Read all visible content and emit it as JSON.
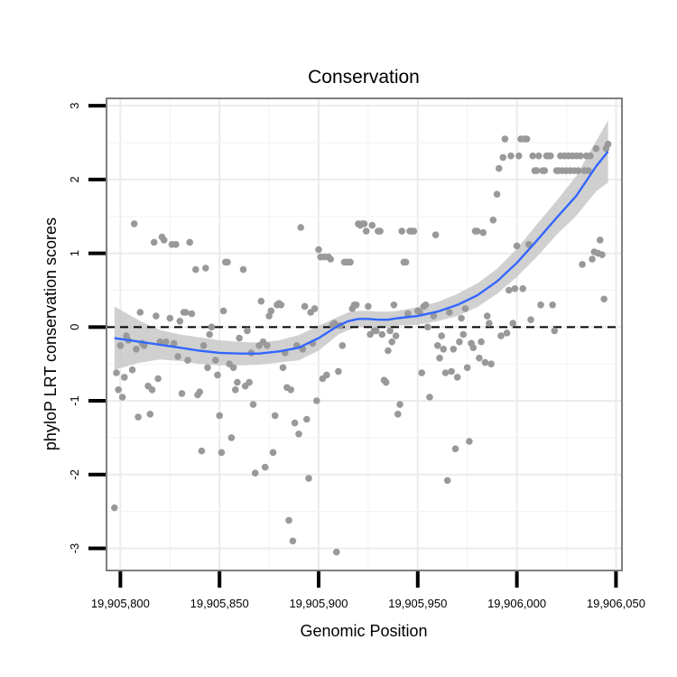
{
  "chart_data": {
    "type": "scatter",
    "title": "Conservation",
    "xlabel": "Genomic Position",
    "ylabel": "phyloP LRT conservation scores",
    "xlim": [
      19905793,
      19906053
    ],
    "ylim": [
      -3.3,
      3.1
    ],
    "x_ticks": [
      19905800,
      19905850,
      19905900,
      19905950,
      19906000,
      19906050
    ],
    "x_tick_labels": [
      "19,905,800",
      "19,905,850",
      "19,905,900",
      "19,905,950",
      "19,906,000",
      "19,906,050"
    ],
    "y_ticks": [
      -3,
      -2,
      -1,
      0,
      1,
      2,
      3
    ],
    "y_tick_labels": [
      "-3",
      "-2",
      "-1",
      "0",
      "1",
      "2",
      "3"
    ],
    "reference_line": 0,
    "colors": {
      "points": "#999999",
      "smooth": "#3366ff",
      "band": "#c8c8c8",
      "grid": "#ebebeb",
      "panel_border": "#7f7f7f"
    },
    "points": [
      [
        19905797,
        -2.45
      ],
      [
        19905798,
        -0.62
      ],
      [
        19905799,
        -0.85
      ],
      [
        19905800,
        -0.25
      ],
      [
        19905801,
        -0.95
      ],
      [
        19905802,
        -0.68
      ],
      [
        19905803,
        -0.12
      ],
      [
        19905804,
        -0.18
      ],
      [
        19905806,
        -0.58
      ],
      [
        19905807,
        1.4
      ],
      [
        19905808,
        -0.3
      ],
      [
        19905809,
        -1.22
      ],
      [
        19905810,
        0.2
      ],
      [
        19905811,
        -0.22
      ],
      [
        19905812,
        -0.25
      ],
      [
        19905814,
        -0.8
      ],
      [
        19905815,
        -1.18
      ],
      [
        19905816,
        -0.85
      ],
      [
        19905817,
        1.15
      ],
      [
        19905818,
        0.15
      ],
      [
        19905819,
        -0.7
      ],
      [
        19905820,
        -0.2
      ],
      [
        19905821,
        1.22
      ],
      [
        19905822,
        1.18
      ],
      [
        19905823,
        -0.2
      ],
      [
        19905825,
        0.12
      ],
      [
        19905826,
        1.12
      ],
      [
        19905827,
        -0.22
      ],
      [
        19905828,
        1.12
      ],
      [
        19905829,
        -0.4
      ],
      [
        19905830,
        0.08
      ],
      [
        19905831,
        -0.9
      ],
      [
        19905832,
        0.2
      ],
      [
        19905833,
        0.2
      ],
      [
        19905834,
        -0.45
      ],
      [
        19905835,
        1.15
      ],
      [
        19905836,
        0.18
      ],
      [
        19905838,
        0.78
      ],
      [
        19905839,
        -0.92
      ],
      [
        19905840,
        -0.88
      ],
      [
        19905841,
        -1.68
      ],
      [
        19905842,
        -0.25
      ],
      [
        19905843,
        0.8
      ],
      [
        19905844,
        -0.55
      ],
      [
        19905845,
        -0.1
      ],
      [
        19905846,
        0.0
      ],
      [
        19905848,
        -0.45
      ],
      [
        19905849,
        -0.65
      ],
      [
        19905850,
        -1.2
      ],
      [
        19905851,
        -1.7
      ],
      [
        19905852,
        0.22
      ],
      [
        19905853,
        0.88
      ],
      [
        19905854,
        0.88
      ],
      [
        19905855,
        -0.5
      ],
      [
        19905856,
        -1.5
      ],
      [
        19905857,
        -0.55
      ],
      [
        19905858,
        -0.85
      ],
      [
        19905859,
        -0.75
      ],
      [
        19905860,
        -0.15
      ],
      [
        19905862,
        0.78
      ],
      [
        19905863,
        -0.8
      ],
      [
        19905864,
        -0.05
      ],
      [
        19905865,
        -0.75
      ],
      [
        19905866,
        -0.35
      ],
      [
        19905867,
        -1.05
      ],
      [
        19905868,
        -1.98
      ],
      [
        19905870,
        -0.25
      ],
      [
        19905871,
        0.35
      ],
      [
        19905872,
        -0.2
      ],
      [
        19905873,
        -1.9
      ],
      [
        19905874,
        -0.25
      ],
      [
        19905875,
        0.15
      ],
      [
        19905876,
        0.22
      ],
      [
        19905877,
        -1.7
      ],
      [
        19905878,
        -1.2
      ],
      [
        19905879,
        0.3
      ],
      [
        19905880,
        0.32
      ],
      [
        19905881,
        0.3
      ],
      [
        19905882,
        -0.55
      ],
      [
        19905883,
        -0.35
      ],
      [
        19905884,
        -0.82
      ],
      [
        19905885,
        -2.62
      ],
      [
        19905886,
        -0.85
      ],
      [
        19905887,
        -2.9
      ],
      [
        19905888,
        -1.3
      ],
      [
        19905889,
        -0.25
      ],
      [
        19905890,
        -1.45
      ],
      [
        19905891,
        1.35
      ],
      [
        19905892,
        -0.3
      ],
      [
        19905893,
        0.28
      ],
      [
        19905894,
        -1.25
      ],
      [
        19905895,
        -2.05
      ],
      [
        19905896,
        0.2
      ],
      [
        19905897,
        -0.22
      ],
      [
        19905898,
        0.25
      ],
      [
        19905899,
        -1.0
      ],
      [
        19905900,
        1.05
      ],
      [
        19905901,
        0.95
      ],
      [
        19905902,
        -0.7
      ],
      [
        19905903,
        0.95
      ],
      [
        19905904,
        -0.65
      ],
      [
        19905905,
        0.95
      ],
      [
        19905906,
        0.92
      ],
      [
        19905907,
        0.03
      ],
      [
        19905908,
        0.05
      ],
      [
        19905909,
        -3.05
      ],
      [
        19905910,
        -0.6
      ],
      [
        19905911,
        0.02
      ],
      [
        19905912,
        -0.25
      ],
      [
        19905913,
        0.88
      ],
      [
        19905914,
        0.88
      ],
      [
        19905915,
        0.88
      ],
      [
        19905916,
        0.88
      ],
      [
        19905917,
        0.25
      ],
      [
        19905918,
        0.3
      ],
      [
        19905919,
        0.3
      ],
      [
        19905920,
        1.4
      ],
      [
        19905921,
        1.38
      ],
      [
        19905922,
        1.4
      ],
      [
        19905923,
        1.4
      ],
      [
        19905924,
        1.3
      ],
      [
        19905925,
        0.28
      ],
      [
        19905926,
        -0.1
      ],
      [
        19905927,
        1.38
      ],
      [
        19905928,
        -0.05
      ],
      [
        19905929,
        -0.05
      ],
      [
        19905930,
        1.3
      ],
      [
        19905931,
        1.3
      ],
      [
        19905932,
        -0.1
      ],
      [
        19905933,
        -0.72
      ],
      [
        19905934,
        -0.75
      ],
      [
        19905935,
        -0.32
      ],
      [
        19905936,
        -0.05
      ],
      [
        19905937,
        -0.2
      ],
      [
        19905938,
        0.3
      ],
      [
        19905939,
        -0.12
      ],
      [
        19905940,
        -1.18
      ],
      [
        19905941,
        -1.05
      ],
      [
        19905942,
        1.3
      ],
      [
        19905943,
        0.88
      ],
      [
        19905944,
        0.88
      ],
      [
        19905945,
        0.18
      ],
      [
        19905946,
        1.3
      ],
      [
        19905947,
        1.3
      ],
      [
        19905948,
        1.3
      ],
      [
        19905950,
        0.22
      ],
      [
        19905951,
        0.2
      ],
      [
        19905952,
        -0.62
      ],
      [
        19905953,
        0.28
      ],
      [
        19905954,
        0.3
      ],
      [
        19905955,
        0.0
      ],
      [
        19905956,
        -0.95
      ],
      [
        19905958,
        0.15
      ],
      [
        19905959,
        1.25
      ],
      [
        19905960,
        -0.25
      ],
      [
        19905961,
        -0.42
      ],
      [
        19905962,
        -0.12
      ],
      [
        19905963,
        -0.3
      ],
      [
        19905964,
        -0.62
      ],
      [
        19905965,
        -2.08
      ],
      [
        19905966,
        0.2
      ],
      [
        19905967,
        -0.6
      ],
      [
        19905968,
        -0.3
      ],
      [
        19905969,
        -1.65
      ],
      [
        19905970,
        -0.68
      ],
      [
        19905971,
        -0.2
      ],
      [
        19905972,
        0.12
      ],
      [
        19905973,
        -0.1
      ],
      [
        19905974,
        0.25
      ],
      [
        19905975,
        -0.55
      ],
      [
        19905976,
        -1.55
      ],
      [
        19905977,
        -0.22
      ],
      [
        19905978,
        -0.28
      ],
      [
        19905979,
        1.3
      ],
      [
        19905980,
        1.3
      ],
      [
        19905981,
        -0.42
      ],
      [
        19905982,
        -0.2
      ],
      [
        19905983,
        1.28
      ],
      [
        19905984,
        -0.48
      ],
      [
        19905985,
        0.15
      ],
      [
        19905986,
        0.05
      ],
      [
        19905987,
        -0.5
      ],
      [
        19905988,
        1.45
      ],
      [
        19905990,
        1.8
      ],
      [
        19905991,
        2.15
      ],
      [
        19905992,
        -0.12
      ],
      [
        19905993,
        2.3
      ],
      [
        19905994,
        2.55
      ],
      [
        19905995,
        -0.08
      ],
      [
        19905996,
        0.5
      ],
      [
        19905997,
        2.32
      ],
      [
        19905998,
        0.05
      ],
      [
        19905999,
        0.52
      ],
      [
        19906000,
        1.1
      ],
      [
        19906001,
        2.32
      ],
      [
        19906002,
        2.55
      ],
      [
        19906003,
        0.52
      ],
      [
        19906004,
        2.55
      ],
      [
        19906005,
        2.55
      ],
      [
        19906006,
        1.12
      ],
      [
        19906007,
        0.1
      ],
      [
        19906008,
        2.32
      ],
      [
        19906009,
        2.12
      ],
      [
        19906010,
        2.12
      ],
      [
        19906011,
        2.32
      ],
      [
        19906012,
        0.3
      ],
      [
        19906013,
        2.12
      ],
      [
        19906014,
        2.12
      ],
      [
        19906015,
        2.32
      ],
      [
        19906016,
        2.32
      ],
      [
        19906017,
        2.32
      ],
      [
        19906018,
        0.3
      ],
      [
        19906019,
        -0.05
      ],
      [
        19906020,
        2.12
      ],
      [
        19906021,
        2.12
      ],
      [
        19906022,
        2.32
      ],
      [
        19906023,
        2.12
      ],
      [
        19906024,
        2.32
      ],
      [
        19906025,
        2.12
      ],
      [
        19906026,
        2.32
      ],
      [
        19906027,
        2.12
      ],
      [
        19906028,
        2.32
      ],
      [
        19906029,
        2.12
      ],
      [
        19906030,
        2.32
      ],
      [
        19906031,
        2.12
      ],
      [
        19906032,
        2.32
      ],
      [
        19906033,
        0.85
      ],
      [
        19906034,
        2.12
      ],
      [
        19906035,
        2.32
      ],
      [
        19906036,
        2.12
      ],
      [
        19906037,
        2.32
      ],
      [
        19906038,
        0.92
      ],
      [
        19906039,
        1.02
      ],
      [
        19906040,
        2.42
      ],
      [
        19906041,
        1.0
      ],
      [
        19906042,
        1.18
      ],
      [
        19906043,
        0.98
      ],
      [
        19906044,
        0.38
      ],
      [
        19906045,
        2.42
      ],
      [
        19906046,
        2.48
      ]
    ],
    "smooth": {
      "x": [
        19905797,
        19905810,
        19905820,
        19905830,
        19905840,
        19905850,
        19905860,
        19905870,
        19905880,
        19905890,
        19905900,
        19905910,
        19905915,
        19905920,
        19905925,
        19905930,
        19905935,
        19905940,
        19905950,
        19905960,
        19905970,
        19905980,
        19905990,
        19906000,
        19906010,
        19906020,
        19906030,
        19906040,
        19906046
      ],
      "y": [
        -0.15,
        -0.2,
        -0.24,
        -0.28,
        -0.32,
        -0.35,
        -0.36,
        -0.36,
        -0.33,
        -0.28,
        -0.15,
        0.02,
        0.08,
        0.11,
        0.11,
        0.1,
        0.1,
        0.12,
        0.15,
        0.21,
        0.3,
        0.43,
        0.62,
        0.87,
        1.17,
        1.48,
        1.78,
        2.18,
        2.38
      ],
      "upper": [
        0.28,
        0.08,
        -0.04,
        -0.1,
        -0.14,
        -0.18,
        -0.2,
        -0.21,
        -0.18,
        -0.11,
        0.02,
        0.14,
        0.2,
        0.22,
        0.22,
        0.21,
        0.21,
        0.22,
        0.27,
        0.34,
        0.45,
        0.59,
        0.79,
        1.06,
        1.39,
        1.71,
        2.05,
        2.52,
        2.8
      ],
      "lower": [
        -0.58,
        -0.48,
        -0.44,
        -0.46,
        -0.5,
        -0.52,
        -0.52,
        -0.51,
        -0.48,
        -0.45,
        -0.32,
        -0.1,
        -0.04,
        0.0,
        0.0,
        -0.01,
        -0.01,
        0.02,
        0.03,
        0.08,
        0.15,
        0.27,
        0.45,
        0.68,
        0.95,
        1.25,
        1.51,
        1.84,
        1.96
      ]
    }
  }
}
